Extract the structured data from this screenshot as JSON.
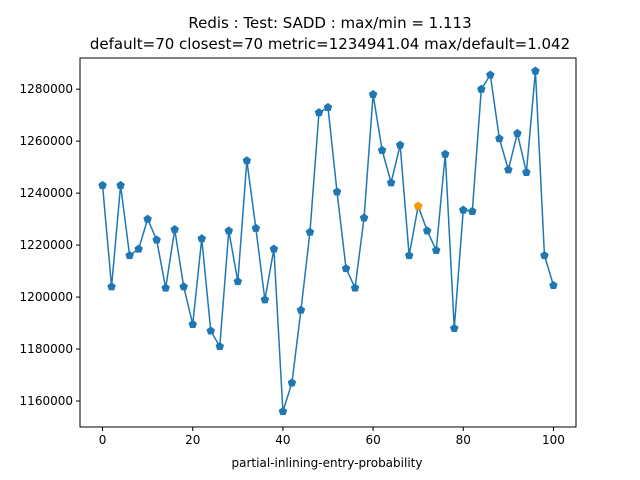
{
  "chart_data": {
    "type": "line",
    "title": "Redis : Test: SADD : max/min = 1.113",
    "subtitle": "default=70 closest=70 metric=1234941.04 max/default=1.042",
    "xlabel": "partial-inlining-entry-probability",
    "ylabel": "",
    "xlim": [
      -5,
      105
    ],
    "ylim": [
      1150000,
      1292000
    ],
    "x_ticks": [
      0,
      20,
      40,
      60,
      80,
      100
    ],
    "y_ticks": [
      1160000,
      1180000,
      1200000,
      1220000,
      1240000,
      1260000,
      1280000
    ],
    "grid": false,
    "series": [
      {
        "color": "#1f77b4",
        "marker": "pentagon",
        "x": [
          0,
          2,
          4,
          6,
          8,
          10,
          12,
          14,
          16,
          18,
          20,
          22,
          24,
          26,
          28,
          30,
          32,
          34,
          36,
          38,
          40,
          42,
          44,
          46,
          48,
          50,
          52,
          54,
          56,
          58,
          60,
          62,
          64,
          66,
          68,
          70,
          72,
          74,
          76,
          78,
          80,
          82,
          84,
          86,
          88,
          90,
          92,
          94,
          96,
          98,
          100
        ],
        "y": [
          1243000,
          1204000,
          1243000,
          1216000,
          1218500,
          1230000,
          1222000,
          1203500,
          1226000,
          1204000,
          1189500,
          1222500,
          1187000,
          1181000,
          1225500,
          1206000,
          1252500,
          1226500,
          1199000,
          1218500,
          1156000,
          1167000,
          1195000,
          1225000,
          1271000,
          1273000,
          1240500,
          1211000,
          1203500,
          1230500,
          1278000,
          1256500,
          1244000,
          1258500,
          1216000,
          1235000,
          1225500,
          1218000,
          1255000,
          1188000,
          1233500,
          1233000,
          1280000,
          1285500,
          1261000,
          1249000,
          1263000,
          1248000,
          1287000,
          1216000,
          1204500
        ]
      }
    ],
    "highlight": {
      "x": 70,
      "y": 1235000,
      "color": "#ff9900"
    }
  }
}
